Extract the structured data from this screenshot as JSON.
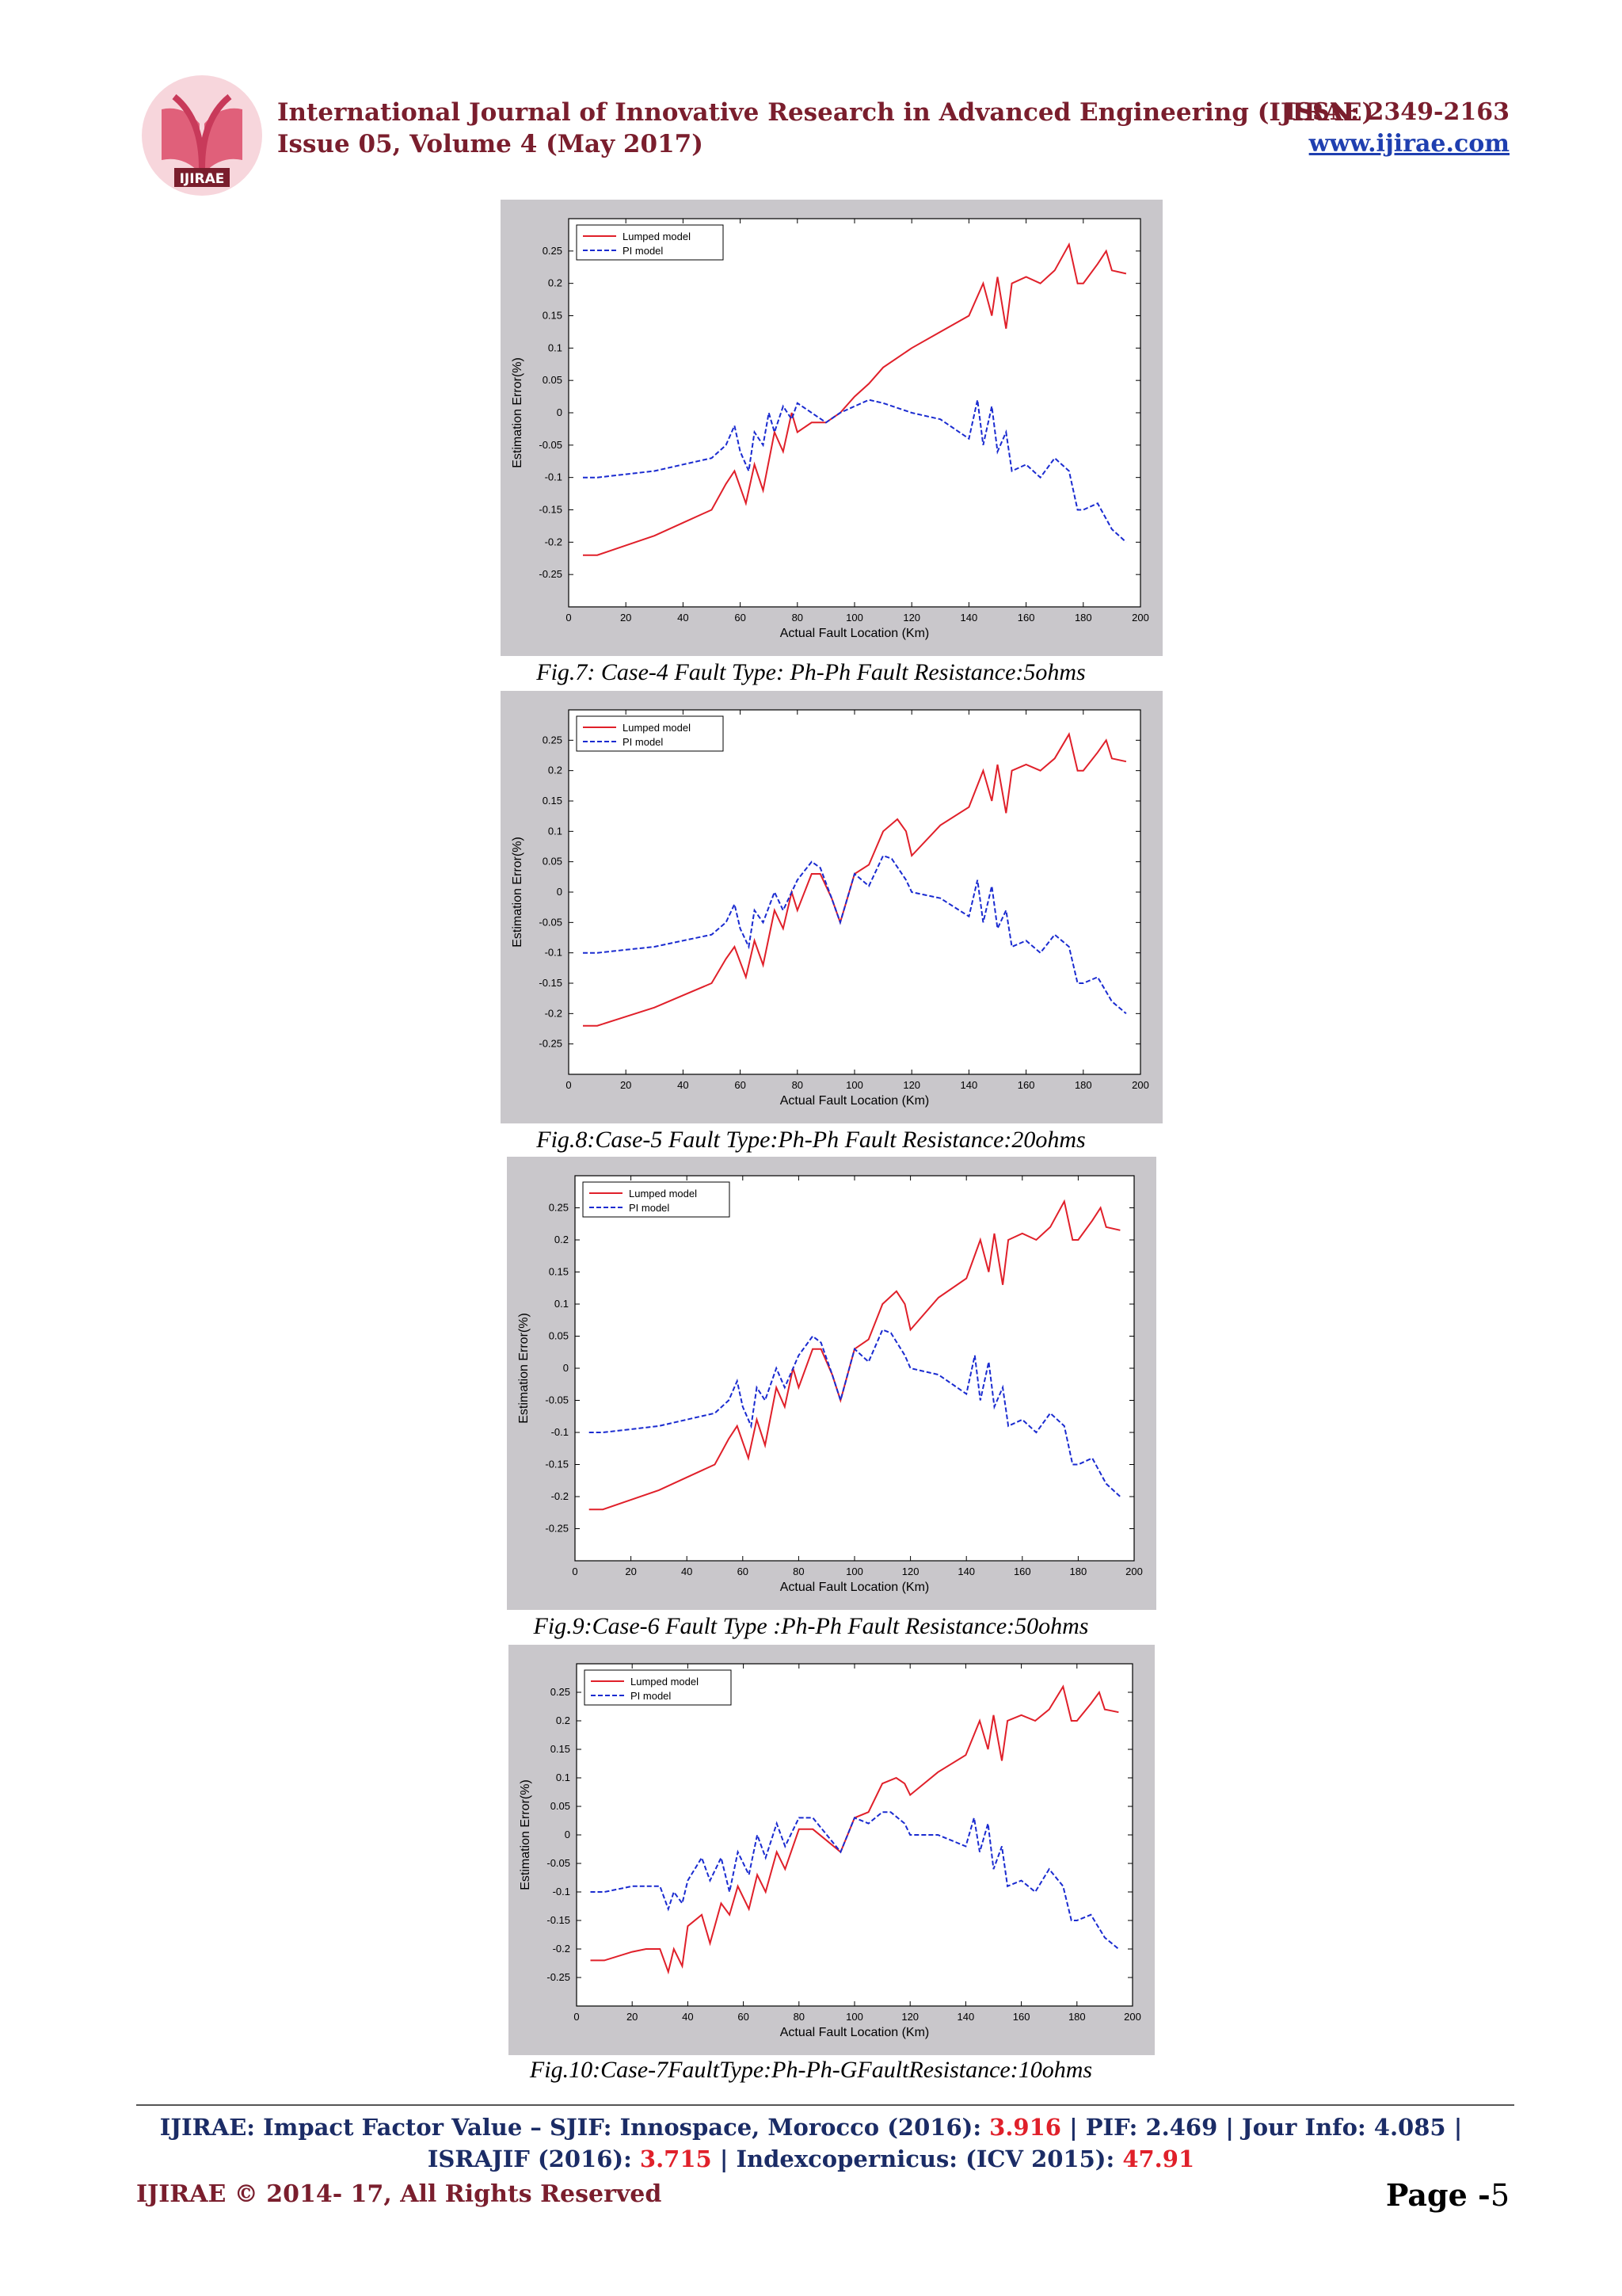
{
  "header": {
    "logo_text": "IJIRAE",
    "journal_title": "International Journal of Innovative Research in Advanced Engineering (IJIRAE)",
    "issue": "Issue 05, Volume 4 (May 2017)",
    "issn": "ISSN: 2349-2163",
    "url": "www.ijirae.com",
    "brand_color": "#7a1e2d"
  },
  "chart_data": [
    {
      "type": "line",
      "caption": "Fig.7: Case-4 Fault Type: Ph-Ph Fault Resistance:5ohms",
      "xlabel": "Actual Fault Location (Km)",
      "ylabel": "Estimation Error(%)",
      "xlim": [
        0,
        200
      ],
      "ylim": [
        -0.3,
        0.3
      ],
      "xticks": [
        "0",
        "20",
        "40",
        "60",
        "80",
        "100",
        "120",
        "140",
        "160",
        "180",
        "200"
      ],
      "yticks": [
        "0.25",
        "0.2",
        "0.15",
        "0.1",
        "0.05",
        "0",
        "-0.05",
        "-0.1",
        "-0.15",
        "-0.2",
        "-0.25"
      ],
      "legend": "top-left",
      "grid": false,
      "series": [
        {
          "name": "Lumped model",
          "color": "#e0202a",
          "style": "solid",
          "x": [
            5,
            10,
            20,
            30,
            40,
            50,
            55,
            58,
            62,
            65,
            68,
            72,
            75,
            78,
            80,
            85,
            90,
            95,
            100,
            105,
            110,
            120,
            130,
            140,
            145,
            148,
            150,
            153,
            155,
            160,
            165,
            170,
            175,
            178,
            180,
            185,
            188,
            190,
            195
          ],
          "y": [
            -0.22,
            -0.22,
            -0.205,
            -0.19,
            -0.17,
            -0.15,
            -0.11,
            -0.09,
            -0.14,
            -0.08,
            -0.12,
            -0.03,
            -0.06,
            0.0,
            -0.03,
            -0.015,
            -0.015,
            0.0,
            0.025,
            0.045,
            0.07,
            0.1,
            0.125,
            0.15,
            0.2,
            0.15,
            0.21,
            0.13,
            0.2,
            0.21,
            0.2,
            0.22,
            0.26,
            0.2,
            0.2,
            0.23,
            0.25,
            0.22,
            0.215
          ]
        },
        {
          "name": "PI model",
          "color": "#1a2bd0",
          "style": "dashed",
          "x": [
            5,
            10,
            20,
            30,
            40,
            50,
            55,
            58,
            60,
            63,
            65,
            68,
            70,
            72,
            75,
            78,
            80,
            85,
            90,
            95,
            100,
            105,
            110,
            120,
            130,
            140,
            143,
            145,
            148,
            150,
            153,
            155,
            160,
            165,
            170,
            175,
            178,
            180,
            185,
            190,
            195
          ],
          "y": [
            -0.1,
            -0.1,
            -0.095,
            -0.09,
            -0.08,
            -0.07,
            -0.05,
            -0.02,
            -0.06,
            -0.09,
            -0.03,
            -0.05,
            0.0,
            -0.03,
            0.01,
            -0.01,
            0.015,
            0.0,
            -0.015,
            0.0,
            0.01,
            0.02,
            0.015,
            0.0,
            -0.01,
            -0.04,
            0.02,
            -0.05,
            0.01,
            -0.06,
            -0.03,
            -0.09,
            -0.08,
            -0.1,
            -0.07,
            -0.09,
            -0.15,
            -0.15,
            -0.14,
            -0.18,
            -0.2
          ]
        }
      ]
    },
    {
      "type": "line",
      "caption": "Fig.8:Case-5 Fault Type:Ph-Ph Fault Resistance:20ohms",
      "xlabel": "Actual Fault Location (Km)",
      "ylabel": "Estimation Error(%)",
      "xlim": [
        0,
        200
      ],
      "ylim": [
        -0.3,
        0.3
      ],
      "xticks": [
        "0",
        "20",
        "40",
        "60",
        "80",
        "100",
        "120",
        "140",
        "160",
        "180",
        "200"
      ],
      "yticks": [
        "0.25",
        "0.2",
        "0.15",
        "0.1",
        "0.05",
        "0",
        "-0.05",
        "-0.1",
        "-0.15",
        "-0.2",
        "-0.25"
      ],
      "legend": "top-left",
      "grid": false,
      "series": [
        {
          "name": "Lumped model",
          "color": "#e0202a",
          "style": "solid",
          "x": [
            5,
            10,
            20,
            30,
            40,
            50,
            55,
            58,
            62,
            65,
            68,
            72,
            75,
            78,
            80,
            85,
            88,
            92,
            95,
            100,
            105,
            110,
            115,
            118,
            120,
            130,
            140,
            145,
            148,
            150,
            153,
            155,
            160,
            165,
            170,
            175,
            178,
            180,
            185,
            188,
            190,
            195
          ],
          "y": [
            -0.22,
            -0.22,
            -0.205,
            -0.19,
            -0.17,
            -0.15,
            -0.11,
            -0.09,
            -0.14,
            -0.08,
            -0.12,
            -0.03,
            -0.06,
            0.0,
            -0.03,
            0.03,
            0.03,
            -0.01,
            -0.05,
            0.03,
            0.045,
            0.1,
            0.12,
            0.1,
            0.06,
            0.11,
            0.14,
            0.2,
            0.15,
            0.21,
            0.13,
            0.2,
            0.21,
            0.2,
            0.22,
            0.26,
            0.2,
            0.2,
            0.23,
            0.25,
            0.22,
            0.215
          ]
        },
        {
          "name": "PI model",
          "color": "#1a2bd0",
          "style": "dashed",
          "x": [
            5,
            10,
            20,
            30,
            40,
            50,
            55,
            58,
            60,
            63,
            65,
            68,
            72,
            75,
            80,
            85,
            88,
            92,
            95,
            100,
            105,
            110,
            113,
            118,
            120,
            130,
            140,
            143,
            145,
            148,
            150,
            153,
            155,
            160,
            165,
            170,
            175,
            178,
            180,
            185,
            190,
            195
          ],
          "y": [
            -0.1,
            -0.1,
            -0.095,
            -0.09,
            -0.08,
            -0.07,
            -0.05,
            -0.02,
            -0.06,
            -0.09,
            -0.03,
            -0.05,
            0.0,
            -0.03,
            0.02,
            0.05,
            0.04,
            -0.01,
            -0.05,
            0.03,
            0.01,
            0.06,
            0.055,
            0.02,
            0.0,
            -0.01,
            -0.04,
            0.02,
            -0.05,
            0.01,
            -0.06,
            -0.03,
            -0.09,
            -0.08,
            -0.1,
            -0.07,
            -0.09,
            -0.15,
            -0.15,
            -0.14,
            -0.18,
            -0.2
          ]
        }
      ]
    },
    {
      "type": "line",
      "caption": "Fig.9:Case-6 Fault Type :Ph-Ph Fault Resistance:50ohms",
      "xlabel": "Actual Fault Location (Km)",
      "ylabel": "Estimation Error(%)",
      "xlim": [
        0,
        200
      ],
      "ylim": [
        -0.3,
        0.3
      ],
      "xticks": [
        "0",
        "20",
        "40",
        "60",
        "80",
        "100",
        "120",
        "140",
        "160",
        "180",
        "200"
      ],
      "yticks": [
        "0.25",
        "0.2",
        "0.15",
        "0.1",
        "0.05",
        "0",
        "-0.05",
        "-0.1",
        "-0.15",
        "-0.2",
        "-0.25"
      ],
      "legend": "top-left",
      "grid": false,
      "series": [
        {
          "name": "Lumped model",
          "color": "#e0202a",
          "style": "solid",
          "x": [
            5,
            10,
            20,
            30,
            40,
            50,
            55,
            58,
            62,
            65,
            68,
            72,
            75,
            78,
            80,
            85,
            88,
            92,
            95,
            100,
            105,
            110,
            115,
            118,
            120,
            130,
            140,
            145,
            148,
            150,
            153,
            155,
            160,
            165,
            170,
            175,
            178,
            180,
            185,
            188,
            190,
            195
          ],
          "y": [
            -0.22,
            -0.22,
            -0.205,
            -0.19,
            -0.17,
            -0.15,
            -0.11,
            -0.09,
            -0.14,
            -0.08,
            -0.12,
            -0.03,
            -0.06,
            0.0,
            -0.03,
            0.03,
            0.03,
            -0.01,
            -0.05,
            0.03,
            0.045,
            0.1,
            0.12,
            0.1,
            0.06,
            0.11,
            0.14,
            0.2,
            0.15,
            0.21,
            0.13,
            0.2,
            0.21,
            0.2,
            0.22,
            0.26,
            0.2,
            0.2,
            0.23,
            0.25,
            0.22,
            0.215
          ]
        },
        {
          "name": "PI model",
          "color": "#1a2bd0",
          "style": "dashed",
          "x": [
            5,
            10,
            20,
            30,
            40,
            50,
            55,
            58,
            60,
            63,
            65,
            68,
            72,
            75,
            80,
            85,
            88,
            92,
            95,
            100,
            105,
            110,
            113,
            118,
            120,
            130,
            140,
            143,
            145,
            148,
            150,
            153,
            155,
            160,
            165,
            170,
            175,
            178,
            180,
            185,
            190,
            195
          ],
          "y": [
            -0.1,
            -0.1,
            -0.095,
            -0.09,
            -0.08,
            -0.07,
            -0.05,
            -0.02,
            -0.06,
            -0.09,
            -0.03,
            -0.05,
            0.0,
            -0.03,
            0.02,
            0.05,
            0.04,
            -0.01,
            -0.05,
            0.03,
            0.01,
            0.06,
            0.055,
            0.02,
            0.0,
            -0.01,
            -0.04,
            0.02,
            -0.05,
            0.01,
            -0.06,
            -0.03,
            -0.09,
            -0.08,
            -0.1,
            -0.07,
            -0.09,
            -0.15,
            -0.15,
            -0.14,
            -0.18,
            -0.2
          ]
        }
      ]
    },
    {
      "type": "line",
      "caption": "Fig.10:Case-7FaultType:Ph-Ph-GFaultResistance:10ohms",
      "xlabel": "Actual Fault Location (Km)",
      "ylabel": "Estimation Error(%)",
      "xlim": [
        0,
        200
      ],
      "ylim": [
        -0.3,
        0.3
      ],
      "xticks": [
        "0",
        "20",
        "40",
        "60",
        "80",
        "100",
        "120",
        "140",
        "160",
        "180",
        "200"
      ],
      "yticks": [
        "0.25",
        "0.2",
        "0.15",
        "0.1",
        "0.05",
        "0",
        "-0.05",
        "-0.1",
        "-0.15",
        "-0.2",
        "-0.25"
      ],
      "legend": "top-left",
      "grid": false,
      "series": [
        {
          "name": "Lumped model",
          "color": "#e0202a",
          "style": "solid",
          "x": [
            5,
            10,
            20,
            25,
            30,
            33,
            35,
            38,
            40,
            45,
            48,
            52,
            55,
            58,
            62,
            65,
            68,
            72,
            75,
            80,
            85,
            90,
            95,
            100,
            105,
            110,
            115,
            118,
            120,
            130,
            140,
            145,
            148,
            150,
            153,
            155,
            160,
            165,
            170,
            175,
            178,
            180,
            185,
            188,
            190,
            195
          ],
          "y": [
            -0.22,
            -0.22,
            -0.205,
            -0.2,
            -0.2,
            -0.24,
            -0.2,
            -0.23,
            -0.16,
            -0.14,
            -0.19,
            -0.12,
            -0.14,
            -0.09,
            -0.13,
            -0.07,
            -0.1,
            -0.03,
            -0.06,
            0.01,
            0.01,
            -0.01,
            -0.03,
            0.03,
            0.04,
            0.09,
            0.1,
            0.09,
            0.07,
            0.11,
            0.14,
            0.2,
            0.15,
            0.21,
            0.13,
            0.2,
            0.21,
            0.2,
            0.22,
            0.26,
            0.2,
            0.2,
            0.23,
            0.25,
            0.22,
            0.215
          ]
        },
        {
          "name": "PI model",
          "color": "#1a2bd0",
          "style": "dashed",
          "x": [
            5,
            10,
            20,
            30,
            33,
            35,
            38,
            40,
            45,
            48,
            52,
            55,
            58,
            62,
            65,
            68,
            72,
            75,
            80,
            85,
            90,
            95,
            100,
            105,
            110,
            113,
            118,
            120,
            130,
            140,
            143,
            145,
            148,
            150,
            153,
            155,
            160,
            165,
            170,
            175,
            178,
            180,
            185,
            190,
            195
          ],
          "y": [
            -0.1,
            -0.1,
            -0.09,
            -0.09,
            -0.13,
            -0.1,
            -0.12,
            -0.08,
            -0.04,
            -0.08,
            -0.04,
            -0.1,
            -0.03,
            -0.07,
            0.0,
            -0.04,
            0.02,
            -0.02,
            0.03,
            0.03,
            0.0,
            -0.03,
            0.03,
            0.02,
            0.04,
            0.04,
            0.02,
            0.0,
            0.0,
            -0.02,
            0.03,
            -0.03,
            0.02,
            -0.06,
            -0.02,
            -0.09,
            -0.08,
            -0.1,
            -0.06,
            -0.09,
            -0.15,
            -0.15,
            -0.14,
            -0.18,
            -0.2
          ]
        }
      ]
    }
  ],
  "footer": {
    "line1_a": "IJIRAE: Impact Factor Value – SJIF: Innospace, Morocco (2016): ",
    "line1_sjif": "3.916",
    "line1_b": " | PIF: 2.469 | Jour Info: 4.085 |",
    "line2_a": "ISRAJIF (2016): ",
    "line2_israjif": "3.715",
    "line2_b": " | Indexcopernicus: (ICV 2015): ",
    "line2_icv": "47.91",
    "copyright": "IJIRAE © 2014- 17, All Rights Reserved",
    "page_label": "Page -",
    "page_number": "5"
  }
}
